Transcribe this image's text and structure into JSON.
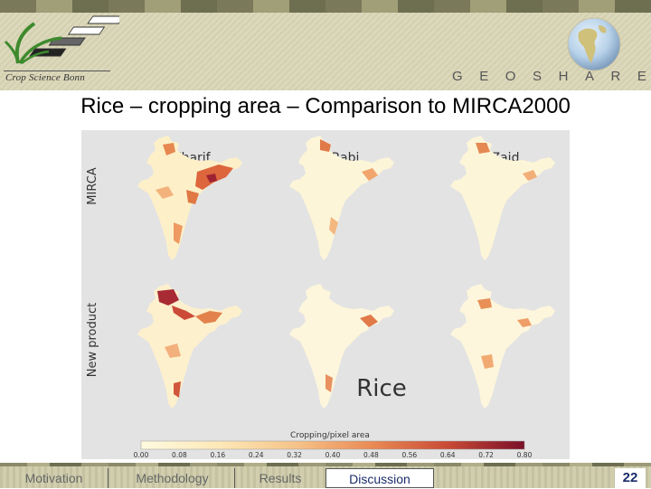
{
  "header": {
    "logo_text": "Crop Science Bonn",
    "brand": [
      "G",
      "E",
      "O",
      "S",
      "H",
      "A",
      "R",
      "E"
    ]
  },
  "slide": {
    "title": "Rice – cropping area – Comparison to MIRCA2000"
  },
  "figure": {
    "row_labels": [
      "MIRCA",
      "New product"
    ],
    "column_labels": [
      "Kharif",
      "Rabi",
      "Zaid"
    ],
    "crop_label": "Rice",
    "colorbar_label": "Cropping/pixel area",
    "colorbar_ticks": [
      "0.00",
      "0.08",
      "0.16",
      "0.24",
      "0.32",
      "0.40",
      "0.48",
      "0.56",
      "0.64",
      "0.72",
      "0.80"
    ],
    "colors": {
      "low": "#fffae0",
      "mid": "#f0a060",
      "high": "#7a1028",
      "background": "#e3e3e3"
    }
  },
  "footer": {
    "nav": [
      "Motivation",
      "Methodology",
      "Results",
      "Discussion"
    ],
    "active": "Discussion",
    "page_number": "22"
  }
}
